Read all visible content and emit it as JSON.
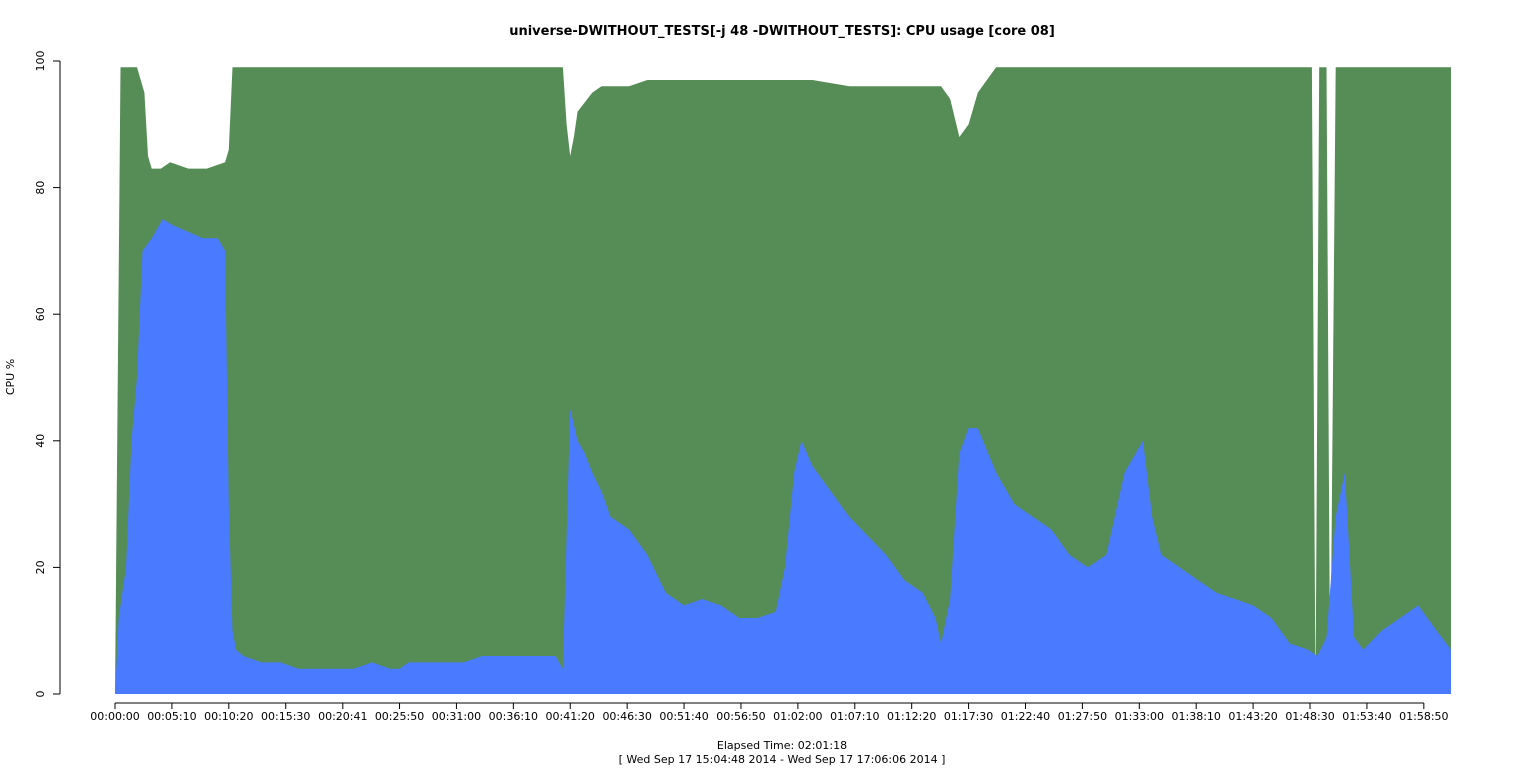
{
  "chart_data": {
    "type": "area",
    "title": "universe-DWITHOUT_TESTS[-j 48  -DWITHOUT_TESTS]: CPU usage [core 08]",
    "ylabel": "CPU %",
    "xlabel": "Elapsed Time: 02:01:18",
    "subtitle": "[ Wed Sep 17 15:04:48 2014 - Wed Sep 17 17:06:06 2014 ]",
    "ylim": [
      0,
      100
    ],
    "yticks": [
      0,
      20,
      40,
      60,
      80,
      100
    ],
    "xlim": [
      0,
      7278
    ],
    "xtick_labels": [
      "00:00:00",
      "00:05:10",
      "00:10:20",
      "00:15:30",
      "00:20:41",
      "00:25:50",
      "00:31:00",
      "00:36:10",
      "00:41:20",
      "00:46:30",
      "00:51:40",
      "00:56:50",
      "01:02:00",
      "01:07:10",
      "01:12:20",
      "01:17:30",
      "01:22:40",
      "01:27:50",
      "01:33:00",
      "01:38:10",
      "01:43:20",
      "01:48:30",
      "01:53:40",
      "01:58:50"
    ],
    "xtick_seconds": [
      0,
      310,
      620,
      930,
      1241,
      1550,
      1860,
      2170,
      2480,
      2790,
      3100,
      3410,
      3720,
      4030,
      4340,
      4650,
      4960,
      5270,
      5580,
      5890,
      6200,
      6510,
      6820,
      7130
    ],
    "series": [
      {
        "color": "#4a7aff",
        "x": [
          0,
          20,
          60,
          90,
          120,
          150,
          200,
          260,
          320,
          400,
          480,
          560,
          600,
          620,
          640,
          660,
          700,
          800,
          900,
          1000,
          1100,
          1200,
          1300,
          1400,
          1500,
          1550,
          1600,
          1700,
          1800,
          1900,
          2000,
          2100,
          2200,
          2300,
          2400,
          2440,
          2480,
          2520,
          2560,
          2600,
          2650,
          2700,
          2800,
          2900,
          3000,
          3100,
          3200,
          3300,
          3400,
          3500,
          3600,
          3650,
          3700,
          3740,
          3800,
          3900,
          4000,
          4100,
          4200,
          4300,
          4400,
          4470,
          4500,
          4550,
          4600,
          4650,
          4700,
          4800,
          4900,
          5000,
          5100,
          5200,
          5300,
          5400,
          5500,
          5600,
          5650,
          5700,
          5800,
          5900,
          6000,
          6100,
          6200,
          6300,
          6400,
          6500,
          6550,
          6600,
          6650,
          6700,
          6750,
          6800,
          6900,
          7000,
          7100,
          7200,
          7278
        ],
        "values": [
          0,
          12,
          20,
          40,
          50,
          70,
          72,
          75,
          74,
          73,
          72,
          72,
          70,
          30,
          10,
          7,
          6,
          5,
          5,
          4,
          4,
          4,
          4,
          5,
          4,
          4,
          5,
          5,
          5,
          5,
          6,
          6,
          6,
          6,
          6,
          4,
          45,
          40,
          38,
          35,
          32,
          28,
          26,
          22,
          16,
          14,
          15,
          14,
          12,
          12,
          13,
          20,
          35,
          40,
          36,
          32,
          28,
          25,
          22,
          18,
          16,
          12,
          8,
          15,
          38,
          42,
          42,
          35,
          30,
          28,
          26,
          22,
          20,
          22,
          35,
          40,
          28,
          22,
          20,
          18,
          16,
          15,
          14,
          12,
          8,
          7,
          6,
          9,
          28,
          35,
          9,
          7,
          10,
          12,
          14,
          10,
          7
        ],
        "name": ""
      },
      {
        "color": "#568c56",
        "x": [
          0,
          30,
          60,
          120,
          160,
          180,
          200,
          250,
          300,
          400,
          500,
          600,
          620,
          640,
          660,
          700,
          800,
          1000,
          1200,
          1400,
          1600,
          1800,
          2000,
          2200,
          2400,
          2440,
          2460,
          2480,
          2500,
          2520,
          2600,
          2650,
          2700,
          2800,
          2900,
          3000,
          3200,
          3400,
          3600,
          3800,
          4000,
          4200,
          4400,
          4500,
          4550,
          4600,
          4650,
          4700,
          4800,
          5000,
          5200,
          5400,
          5600,
          5800,
          6000,
          6200,
          6400,
          6500,
          6520,
          6540,
          6560,
          6580,
          6600,
          6620,
          6650,
          6700,
          6750,
          6800,
          6900,
          7000,
          7100,
          7200,
          7278
        ],
        "values": [
          0,
          99,
          99,
          99,
          95,
          85,
          83,
          83,
          84,
          83,
          83,
          84,
          86,
          99,
          99,
          99,
          99,
          99,
          99,
          99,
          99,
          99,
          99,
          99,
          99,
          99,
          90,
          85,
          88,
          92,
          95,
          96,
          96,
          96,
          97,
          97,
          97,
          97,
          97,
          97,
          96,
          96,
          96,
          96,
          94,
          88,
          90,
          95,
          99,
          99,
          99,
          99,
          99,
          99,
          99,
          99,
          99,
          99,
          99,
          0,
          99,
          99,
          99,
          0,
          99,
          99,
          99,
          99,
          99,
          99,
          99,
          99,
          99
        ],
        "name": ""
      }
    ]
  }
}
